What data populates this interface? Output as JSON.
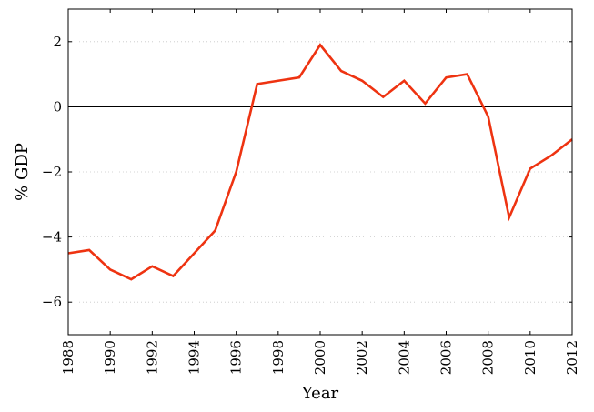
{
  "chart_data": {
    "type": "line",
    "title": "",
    "xlabel": "Year",
    "ylabel": "% GDP",
    "xlim": [
      1988,
      2012
    ],
    "ylim": [
      -7,
      3
    ],
    "xticks": [
      1988,
      1990,
      1992,
      1994,
      1996,
      1998,
      2000,
      2002,
      2004,
      2006,
      2008,
      2010,
      2012
    ],
    "yticks": [
      -6,
      -4,
      -2,
      0,
      2
    ],
    "ytick_labels": [
      "−6",
      "−4",
      "−2",
      "0",
      "2"
    ],
    "grid": "horizontal dotted",
    "zero_line": true,
    "series": [
      {
        "color": "#ee3311",
        "x": [
          1988,
          1989,
          1990,
          1991,
          1992,
          1993,
          1994,
          1995,
          1996,
          1997,
          1998,
          1999,
          2000,
          2001,
          2002,
          2003,
          2004,
          2005,
          2006,
          2007,
          2008,
          2009,
          2010,
          2011,
          2012
        ],
        "y": [
          -4.5,
          -4.4,
          -5.0,
          -5.3,
          -4.9,
          -5.2,
          -4.5,
          -3.8,
          -2.0,
          0.7,
          0.8,
          0.9,
          1.9,
          1.1,
          0.8,
          0.3,
          0.8,
          0.1,
          0.9,
          1.0,
          -0.3,
          -3.4,
          -1.9,
          -1.5,
          -1.0
        ]
      }
    ]
  }
}
